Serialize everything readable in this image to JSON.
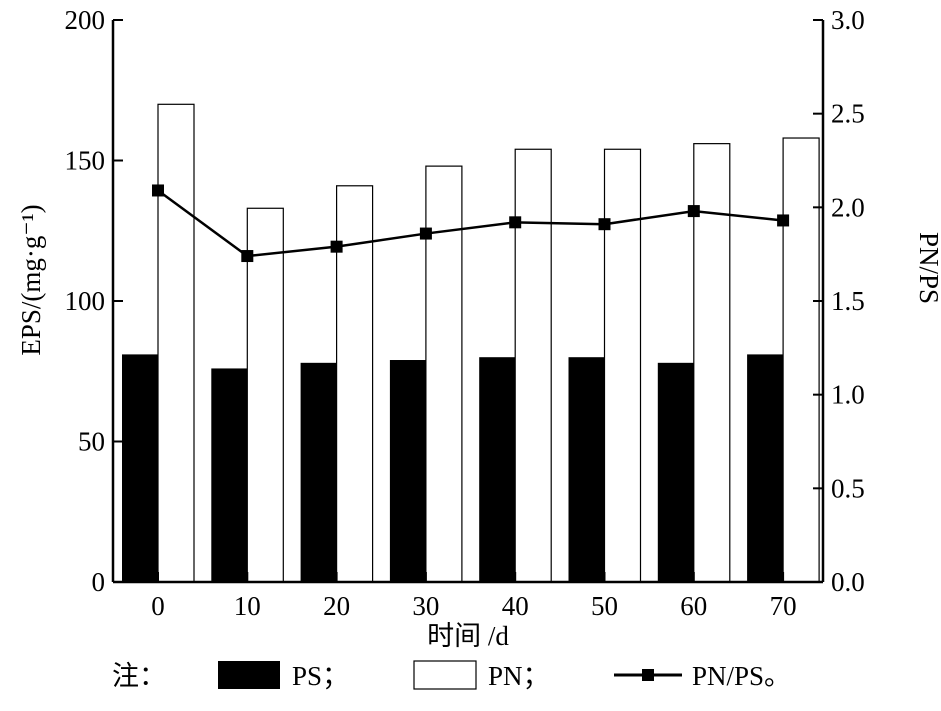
{
  "chart_data": {
    "type": "bar",
    "categories": [
      "0",
      "10",
      "20",
      "30",
      "40",
      "50",
      "60",
      "70"
    ],
    "series": [
      {
        "name": "PS",
        "type": "bar",
        "axis": "left",
        "color": "#000000",
        "values": [
          81,
          76,
          78,
          79,
          80,
          80,
          78,
          81
        ]
      },
      {
        "name": "PN",
        "type": "bar",
        "axis": "left",
        "color": "#ffffff",
        "values": [
          170,
          133,
          141,
          148,
          154,
          154,
          156,
          158
        ]
      },
      {
        "name": "PN/PS",
        "type": "line",
        "axis": "right",
        "marker": "square",
        "color": "#000000",
        "values": [
          2.09,
          1.74,
          1.79,
          1.86,
          1.92,
          1.91,
          1.98,
          1.93
        ]
      }
    ],
    "xlabel": "时间 /d",
    "ylabel": "EPS/(mg·g⁻¹)",
    "y2label": "PN/PS",
    "ylim": [
      0,
      200
    ],
    "y2lim": [
      0,
      3.0
    ],
    "yticks": [
      "0",
      "50",
      "100",
      "150",
      "200"
    ],
    "y2ticks": [
      "0.0",
      "0.5",
      "1.0",
      "1.5",
      "2.0",
      "2.5",
      "3.0"
    ],
    "grid": false,
    "legend": {
      "placement": "bottom",
      "prefix": "注：",
      "items": [
        {
          "label": "PS；",
          "symbol": "filled-box"
        },
        {
          "label": "PN；",
          "symbol": "empty-box"
        },
        {
          "label": "PN/PS。",
          "symbol": "line-square"
        }
      ]
    }
  }
}
